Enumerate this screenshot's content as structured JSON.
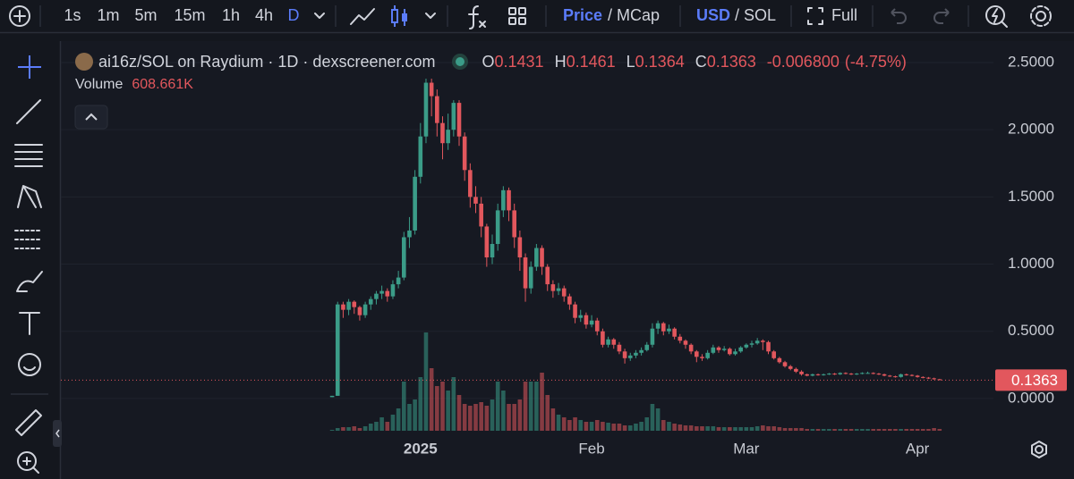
{
  "toolbar": {
    "intervals": [
      "1s",
      "1m",
      "5m",
      "15m",
      "1h",
      "4h",
      "D"
    ],
    "price": "Price",
    "mcap": "/ MCap",
    "usd": "USD",
    "sol": "/ SOL",
    "full": "Full"
  },
  "chart_data": {
    "type": "candlestick",
    "title": "ai16z/SOL on Raydium · 1D · dexscreener.com",
    "legend": {
      "labels": [
        "O",
        "H",
        "L",
        "C"
      ],
      "change": {
        "value": -0.0068,
        "label": "-0.006800"
      },
      "change_pct": {
        "value": -4.75,
        "label": "(-4.75%)"
      },
      "volume": {
        "name": "Volume",
        "label": "608.661K"
      }
    },
    "up_color": "#3b9c88",
    "down_color": "#e2575d",
    "grid": true,
    "ylim": [
      -0.24,
      2.633
    ],
    "yticks": [
      {
        "value": 0,
        "label": "0.0000"
      },
      {
        "value": 0.5,
        "label": "0.5000"
      },
      {
        "value": 1,
        "label": "1.0000"
      },
      {
        "value": 1.5,
        "label": "1.5000"
      },
      {
        "value": 2,
        "label": "2.0000"
      },
      {
        "value": 2.5,
        "label": "2.5000"
      }
    ],
    "categories": [
      null,
      null,
      null,
      null,
      null,
      null,
      null,
      null,
      null,
      null,
      null,
      null,
      null,
      null,
      null,
      null,
      "2025",
      null,
      null,
      null,
      null,
      null,
      null,
      null,
      null,
      null,
      null,
      null,
      null,
      null,
      null,
      null,
      null,
      null,
      null,
      null,
      null,
      null,
      null,
      null,
      null,
      null,
      null,
      null,
      null,
      null,
      null,
      "Feb",
      null,
      null,
      null,
      null,
      null,
      null,
      null,
      null,
      null,
      null,
      null,
      null,
      null,
      null,
      null,
      null,
      null,
      null,
      null,
      null,
      null,
      null,
      null,
      null,
      null,
      null,
      null,
      "Mar",
      null,
      null,
      null,
      null,
      null,
      null,
      null,
      null,
      null,
      null,
      null,
      null,
      null,
      null,
      null,
      null,
      null,
      null,
      null,
      null,
      null,
      null,
      null,
      null,
      null,
      null,
      null,
      null,
      null,
      null,
      "Apr",
      null,
      null,
      null,
      null
    ],
    "open": [
      0.01,
      0.02,
      0.7,
      0.66,
      0.72,
      0.68,
      0.62,
      0.7,
      0.74,
      0.78,
      0.8,
      0.76,
      0.85,
      0.9,
      1.2,
      1.25,
      1.65,
      1.95,
      2.35,
      2.25,
      2.05,
      1.9,
      2.0,
      2.2,
      1.95,
      1.7,
      1.5,
      1.45,
      1.28,
      1.05,
      1.15,
      1.4,
      1.55,
      1.4,
      1.2,
      1.05,
      0.82,
      0.98,
      1.12,
      0.98,
      0.85,
      0.8,
      0.82,
      0.76,
      0.7,
      0.6,
      0.62,
      0.55,
      0.58,
      0.5,
      0.4,
      0.44,
      0.4,
      0.35,
      0.3,
      0.32,
      0.34,
      0.36,
      0.4,
      0.52,
      0.56,
      0.5,
      0.52,
      0.46,
      0.43,
      0.4,
      0.35,
      0.31,
      0.3,
      0.34,
      0.38,
      0.36,
      0.37,
      0.33,
      0.35,
      0.38,
      0.4,
      0.41,
      0.43,
      0.42,
      0.35,
      0.3,
      0.27,
      0.24,
      0.22,
      0.2,
      0.18,
      0.17,
      0.18,
      0.175,
      0.18,
      0.185,
      0.18,
      0.19,
      0.185,
      0.18,
      0.185,
      0.19,
      0.19,
      0.185,
      0.18,
      0.17,
      0.165,
      0.16,
      0.18,
      0.175,
      0.17,
      0.16,
      0.155,
      0.15,
      0.1431
    ],
    "high": [
      0.02,
      0.72,
      0.72,
      0.74,
      0.73,
      0.69,
      0.72,
      0.76,
      0.8,
      0.84,
      0.82,
      0.88,
      0.95,
      1.24,
      1.35,
      1.7,
      2.05,
      2.38,
      2.38,
      2.3,
      2.1,
      2.12,
      2.22,
      2.22,
      1.98,
      1.75,
      1.58,
      1.5,
      1.3,
      1.22,
      1.45,
      1.58,
      1.57,
      1.45,
      1.25,
      1.08,
      1.02,
      1.15,
      1.14,
      1.0,
      0.88,
      0.86,
      0.84,
      0.78,
      0.72,
      0.66,
      0.64,
      0.62,
      0.6,
      0.52,
      0.46,
      0.45,
      0.42,
      0.37,
      0.34,
      0.36,
      0.38,
      0.42,
      0.56,
      0.58,
      0.57,
      0.55,
      0.53,
      0.48,
      0.44,
      0.41,
      0.36,
      0.33,
      0.36,
      0.4,
      0.39,
      0.39,
      0.38,
      0.37,
      0.39,
      0.41,
      0.43,
      0.45,
      0.44,
      0.43,
      0.36,
      0.31,
      0.28,
      0.25,
      0.23,
      0.21,
      0.185,
      0.185,
      0.185,
      0.185,
      0.19,
      0.19,
      0.195,
      0.195,
      0.19,
      0.19,
      0.195,
      0.2,
      0.195,
      0.19,
      0.185,
      0.175,
      0.17,
      0.185,
      0.185,
      0.18,
      0.175,
      0.165,
      0.16,
      0.155,
      0.1461
    ],
    "low": [
      0.01,
      0.02,
      0.6,
      0.62,
      0.63,
      0.58,
      0.6,
      0.66,
      0.7,
      0.74,
      0.72,
      0.74,
      0.82,
      0.88,
      1.12,
      1.22,
      1.6,
      1.9,
      2.1,
      1.95,
      1.78,
      1.85,
      1.95,
      1.88,
      1.62,
      1.42,
      1.38,
      1.2,
      0.98,
      1.0,
      1.1,
      1.35,
      1.32,
      1.12,
      0.95,
      0.72,
      0.78,
      0.95,
      0.92,
      0.8,
      0.75,
      0.77,
      0.72,
      0.66,
      0.56,
      0.57,
      0.52,
      0.53,
      0.47,
      0.38,
      0.38,
      0.37,
      0.33,
      0.26,
      0.28,
      0.3,
      0.32,
      0.35,
      0.38,
      0.48,
      0.47,
      0.48,
      0.44,
      0.41,
      0.37,
      0.33,
      0.27,
      0.28,
      0.29,
      0.33,
      0.34,
      0.35,
      0.32,
      0.32,
      0.34,
      0.37,
      0.38,
      0.4,
      0.36,
      0.33,
      0.29,
      0.26,
      0.23,
      0.21,
      0.19,
      0.17,
      0.165,
      0.165,
      0.17,
      0.17,
      0.175,
      0.175,
      0.175,
      0.18,
      0.175,
      0.175,
      0.18,
      0.185,
      0.18,
      0.175,
      0.165,
      0.16,
      0.155,
      0.155,
      0.17,
      0.165,
      0.155,
      0.15,
      0.145,
      0.14,
      0.1364
    ],
    "close": [
      0.02,
      0.7,
      0.66,
      0.72,
      0.68,
      0.62,
      0.7,
      0.74,
      0.78,
      0.8,
      0.76,
      0.85,
      0.9,
      1.2,
      1.25,
      1.65,
      1.95,
      2.35,
      2.25,
      2.05,
      1.9,
      2.0,
      2.2,
      1.95,
      1.7,
      1.5,
      1.45,
      1.28,
      1.05,
      1.15,
      1.4,
      1.55,
      1.4,
      1.2,
      1.05,
      0.82,
      0.98,
      1.12,
      0.98,
      0.85,
      0.8,
      0.82,
      0.76,
      0.7,
      0.6,
      0.62,
      0.55,
      0.58,
      0.5,
      0.4,
      0.44,
      0.4,
      0.35,
      0.3,
      0.32,
      0.34,
      0.36,
      0.4,
      0.52,
      0.56,
      0.5,
      0.52,
      0.46,
      0.43,
      0.4,
      0.35,
      0.31,
      0.3,
      0.34,
      0.38,
      0.36,
      0.37,
      0.33,
      0.35,
      0.38,
      0.4,
      0.41,
      0.43,
      0.42,
      0.35,
      0.3,
      0.27,
      0.24,
      0.22,
      0.2,
      0.18,
      0.17,
      0.18,
      0.175,
      0.18,
      0.185,
      0.18,
      0.19,
      0.185,
      0.18,
      0.185,
      0.19,
      0.19,
      0.185,
      0.18,
      0.17,
      0.165,
      0.16,
      0.18,
      0.175,
      0.17,
      0.16,
      0.155,
      0.15,
      0.1431,
      0.1363
    ],
    "volume": [
      300000,
      900000,
      1200000,
      1200000,
      1500000,
      900000,
      1500000,
      2400000,
      3000000,
      4500000,
      3000000,
      5400000,
      7500000,
      16500000,
      9000000,
      10500000,
      18000000,
      33000000,
      21000000,
      15000000,
      16500000,
      13500000,
      18000000,
      12000000,
      9000000,
      8400000,
      9000000,
      9600000,
      8400000,
      10500000,
      16500000,
      13500000,
      9000000,
      9000000,
      10500000,
      16500000,
      16500000,
      16500000,
      19500000,
      12000000,
      7500000,
      5400000,
      4500000,
      3600000,
      4500000,
      3600000,
      3000000,
      3000000,
      3600000,
      3000000,
      2700000,
      2400000,
      2400000,
      1800000,
      1800000,
      2400000,
      3000000,
      4500000,
      9000000,
      7500000,
      3600000,
      3000000,
      2400000,
      2100000,
      1800000,
      1800000,
      1500000,
      1500000,
      1500000,
      1500000,
      1200000,
      1200000,
      1200000,
      1200000,
      1200000,
      1200000,
      1200000,
      1500000,
      1800000,
      1500000,
      1500000,
      1200000,
      900000,
      900000,
      900000,
      900000,
      600000,
      600000,
      600000,
      600000,
      600000,
      600000,
      600000,
      600000,
      600000,
      600000,
      600000,
      600000,
      600000,
      600000,
      600000,
      600000,
      600000,
      600000,
      600000,
      600000,
      600000,
      600000,
      600000,
      900000,
      608661
    ]
  }
}
